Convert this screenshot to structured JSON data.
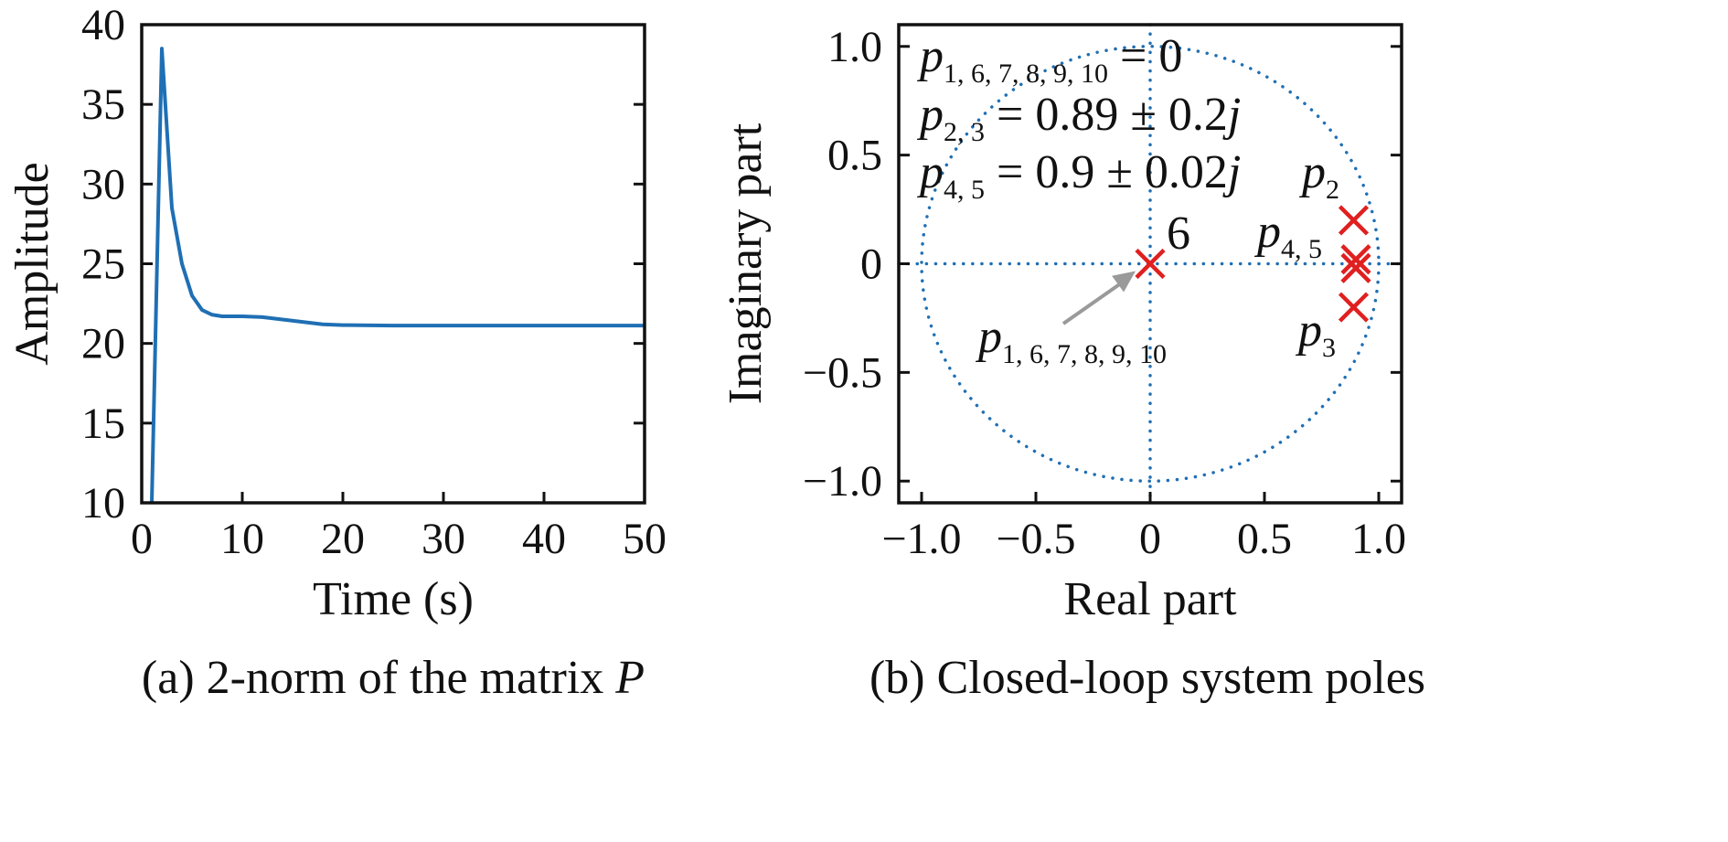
{
  "chart_data": [
    {
      "type": "line",
      "caption": {
        "prefix": "(a) 2-norm of the matrix ",
        "symbol": "P"
      },
      "xlabel": "Time (s)",
      "ylabel": "Amplitude",
      "xlim": [
        0,
        50
      ],
      "ylim": [
        10,
        40
      ],
      "xticks": [
        "0",
        "10",
        "20",
        "30",
        "40",
        "50"
      ],
      "yticks": [
        "10",
        "15",
        "20",
        "25",
        "30",
        "35",
        "40"
      ],
      "grid": false,
      "color": "#1f6fb4",
      "series": [
        {
          "x": [
            1.0,
            2.0,
            3.0,
            4.0,
            5.0,
            6.0,
            7.0,
            8.0,
            10.0,
            12.0,
            14.0,
            16.0,
            18.0,
            20.0,
            25.0,
            30.0,
            35.0,
            40.0,
            45.0,
            50.0
          ],
          "y": [
            10.0,
            38.5,
            28.5,
            25.0,
            23.0,
            22.1,
            21.8,
            21.7,
            21.7,
            21.65,
            21.5,
            21.35,
            21.2,
            21.15,
            21.12,
            21.12,
            21.12,
            21.12,
            21.12,
            21.12
          ]
        }
      ]
    },
    {
      "type": "scatter",
      "caption": {
        "text": "(b) Closed-loop system poles"
      },
      "xlabel": "Real part",
      "ylabel": "Imaginary part",
      "xlim": [
        -1.1,
        1.1
      ],
      "ylim": [
        -1.1,
        1.1
      ],
      "xticks": [
        "−1.0",
        "−0.5",
        "0",
        "0.5",
        "1.0"
      ],
      "yticks": [
        "−1.0",
        "−0.5",
        "0",
        "0.5",
        "1.0"
      ],
      "grid": false,
      "guide_color": "#1f6fb4",
      "marker_color": "#e02020",
      "unit_circle": true,
      "poles": [
        {
          "re": 0.0,
          "im": 0.0
        },
        {
          "re": 0.89,
          "im": 0.2
        },
        {
          "re": 0.89,
          "im": -0.2
        },
        {
          "re": 0.9,
          "im": 0.02
        },
        {
          "re": 0.9,
          "im": -0.02
        }
      ],
      "equations": [
        {
          "sym": "p",
          "sub": "1, 6, 7, 8, 9, 10",
          "rhs": " = 0"
        },
        {
          "sym": "p",
          "sub": "2, 3",
          "rhs": " = 0.89 ± 0.2",
          "j": "j"
        },
        {
          "sym": "p",
          "sub": "4, 5",
          "rhs": " = 0.9 ± 0.02",
          "j": "j"
        }
      ],
      "labels": {
        "origin_count": "6",
        "origin_sym": "p",
        "origin_sub": "1, 6, 7, 8, 9, 10",
        "p2_sym": "p",
        "p2_sub": "2",
        "p3_sym": "p",
        "p3_sub": "3",
        "p45_sym": "p",
        "p45_sub": "4, 5"
      }
    }
  ]
}
